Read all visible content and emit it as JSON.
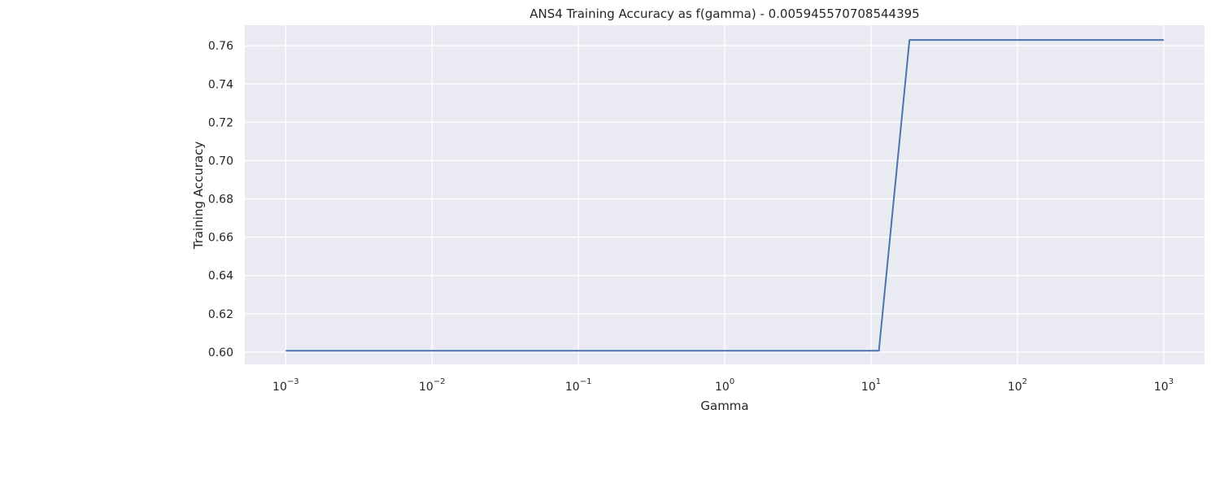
{
  "chart_data": {
    "type": "line",
    "title": "ANS4 Training Accuracy as f(gamma) - 0.005945570708544395",
    "xlabel": "Gamma",
    "ylabel": "Training Accuracy",
    "xscale": "log",
    "xlim": [
      0.000525,
      1900
    ],
    "ylim": [
      0.5936,
      0.7707
    ],
    "grid": true,
    "x_ticks": [
      {
        "value": 0.001,
        "base": "10",
        "exp": "−3"
      },
      {
        "value": 0.01,
        "base": "10",
        "exp": "−2"
      },
      {
        "value": 0.1,
        "base": "10",
        "exp": "−1"
      },
      {
        "value": 1,
        "base": "10",
        "exp": "0"
      },
      {
        "value": 10,
        "base": "10",
        "exp": "1"
      },
      {
        "value": 100,
        "base": "10",
        "exp": "2"
      },
      {
        "value": 1000,
        "base": "10",
        "exp": "3"
      }
    ],
    "y_ticks": [
      {
        "value": 0.6,
        "label": "0.60"
      },
      {
        "value": 0.62,
        "label": "0.62"
      },
      {
        "value": 0.64,
        "label": "0.64"
      },
      {
        "value": 0.66,
        "label": "0.66"
      },
      {
        "value": 0.68,
        "label": "0.68"
      },
      {
        "value": 0.7,
        "label": "0.70"
      },
      {
        "value": 0.72,
        "label": "0.72"
      },
      {
        "value": 0.74,
        "label": "0.74"
      },
      {
        "value": 0.76,
        "label": "0.76"
      }
    ],
    "series": [
      {
        "color": "#4c72b0",
        "x": [
          0.001,
          11.3,
          18.3,
          1000
        ],
        "y": [
          0.6007,
          0.6007,
          0.763,
          0.763
        ]
      }
    ]
  },
  "colors": {
    "plot_background": "#eaeaf2",
    "grid": "#ffffff"
  }
}
